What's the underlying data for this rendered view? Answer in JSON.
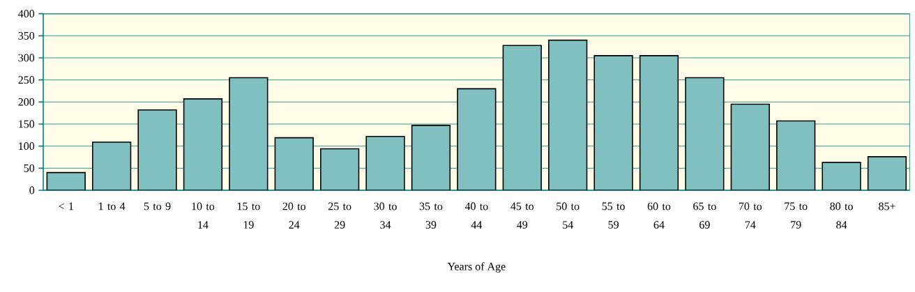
{
  "chart_data": {
    "type": "bar",
    "xlabel": "Years of Age",
    "categories": [
      "< 1",
      "1 to 4",
      "5 to 9",
      "10 to 14",
      "15 to 19",
      "20 to 24",
      "25 to 29",
      "30 to 34",
      "35 to 39",
      "40 to 44",
      "45 to 49",
      "50 to 54",
      "55 to 59",
      "60 to 64",
      "65 to 69",
      "70 to 74",
      "75 to 79",
      "80 to 84",
      "85+"
    ],
    "values": [
      40,
      109,
      182,
      207,
      255,
      119,
      94,
      122,
      147,
      230,
      328,
      340,
      305,
      305,
      255,
      195,
      157,
      63,
      76
    ],
    "color": "#80c0c0",
    "ylim": [
      0,
      400
    ],
    "yticks": [
      0,
      50,
      100,
      150,
      200,
      250,
      300,
      350,
      400
    ],
    "grid": "y"
  }
}
